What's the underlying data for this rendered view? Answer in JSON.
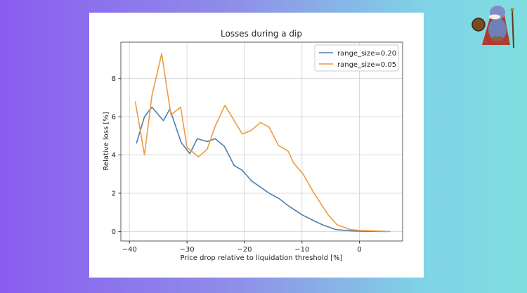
{
  "chart_data": {
    "type": "line",
    "title": "Losses during a dip",
    "xlabel": "Price drop relative to liquidation threshold [%]",
    "ylabel": "Relative loss [%]",
    "xlim": [
      -41.5,
      7.5
    ],
    "ylim": [
      -0.5,
      9.9
    ],
    "xticks": [
      -40,
      -30,
      -20,
      -10,
      0
    ],
    "yticks": [
      0,
      2,
      4,
      6,
      8
    ],
    "grid": true,
    "legend_position": "top-right",
    "series": [
      {
        "name": "range_size=0.20",
        "color": "#4a7fb0",
        "x": [
          -38.8,
          -37.4,
          -36.1,
          -34.1,
          -33.0,
          -31.0,
          -29.5,
          -28.2,
          -26.5,
          -25.1,
          -23.5,
          -21.8,
          -20.4,
          -18.8,
          -15.7,
          -13.9,
          -12.4,
          -10.0,
          -7.9,
          -6.3,
          -4.1,
          -1.6,
          0.5,
          5.0
        ],
        "y": [
          4.6,
          6.0,
          6.5,
          5.8,
          6.4,
          4.65,
          4.07,
          4.85,
          4.7,
          4.85,
          4.45,
          3.45,
          3.2,
          2.65,
          2.0,
          1.7,
          1.35,
          0.87,
          0.55,
          0.33,
          0.1,
          0.03,
          0.01,
          0.0
        ]
      },
      {
        "name": "range_size=0.05",
        "color": "#ef9a3c",
        "x": [
          -39.0,
          -37.4,
          -36.1,
          -34.4,
          -32.8,
          -31.1,
          -30.0,
          -28.0,
          -26.5,
          -25.1,
          -23.4,
          -21.7,
          -20.4,
          -18.9,
          -17.2,
          -15.7,
          -14.1,
          -12.4,
          -11.5,
          -9.8,
          -7.8,
          -5.4,
          -3.9,
          -1.6,
          0.2,
          5.4
        ],
        "y": [
          6.8,
          4.0,
          7.1,
          9.3,
          6.1,
          6.5,
          4.4,
          3.9,
          4.3,
          5.5,
          6.6,
          5.75,
          5.1,
          5.27,
          5.7,
          5.45,
          4.5,
          4.2,
          3.6,
          3.0,
          1.95,
          0.85,
          0.35,
          0.1,
          0.05,
          0.0
        ]
      }
    ]
  }
}
